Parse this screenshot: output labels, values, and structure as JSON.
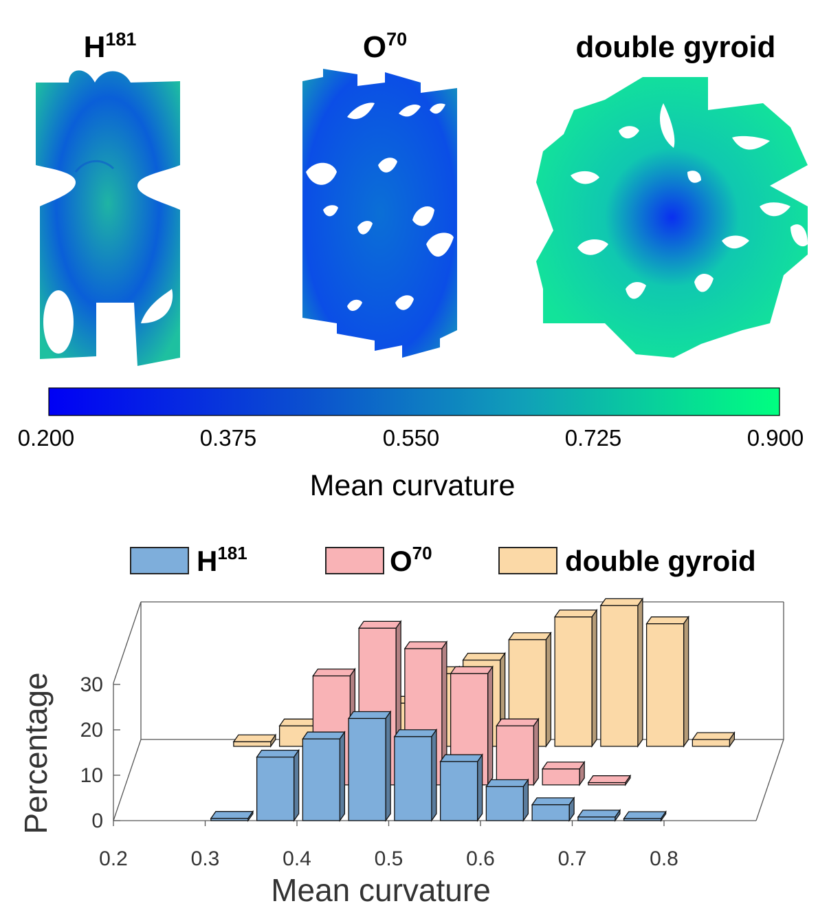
{
  "panels": [
    {
      "title_base": "H",
      "title_sup": "181",
      "icon": "h181-surface-icon"
    },
    {
      "title_base": "O",
      "title_sup": "70",
      "icon": "o70-surface-icon"
    },
    {
      "title_base": "double gyroid",
      "title_sup": "",
      "icon": "double-gyroid-surface-icon"
    }
  ],
  "colorbar": {
    "ticks": [
      "0.200",
      "0.375",
      "0.550",
      "0.725",
      "0.900"
    ],
    "label": "Mean curvature",
    "colors": [
      "#0000f5",
      "#0b4fcf",
      "#10a0b8",
      "#00ff80"
    ]
  },
  "legend": [
    {
      "base": "H",
      "sup": "181",
      "color": "#7eaedb"
    },
    {
      "base": "O",
      "sup": "70",
      "color": "#f9b3b6"
    },
    {
      "base": "double gyroid",
      "sup": "",
      "color": "#fbd9a7"
    }
  ],
  "chart_data": {
    "type": "bar",
    "x_ticks": [
      "0.2",
      "0.3",
      "0.4",
      "0.5",
      "0.6",
      "0.7",
      "0.8"
    ],
    "y_ticks": [
      "0",
      "10",
      "20",
      "30"
    ],
    "xlabel": "Mean curvature",
    "ylabel": "Percentage",
    "xlim": [
      0.2,
      0.9
    ],
    "ylim": [
      0,
      40
    ],
    "series": [
      {
        "name": "H181",
        "color": "#7eaedb",
        "x": [
          0.325,
          0.375,
          0.425,
          0.475,
          0.525,
          0.575,
          0.625,
          0.675,
          0.725,
          0.775
        ],
        "values": [
          0.5,
          14,
          18,
          22.5,
          18.5,
          13,
          7.5,
          3.5,
          0.8,
          0.3
        ]
      },
      {
        "name": "O70",
        "color": "#f9b3b6",
        "x": [
          0.425,
          0.475,
          0.525,
          0.575,
          0.625,
          0.675,
          0.725
        ],
        "values": [
          24,
          34.5,
          30,
          24.5,
          13,
          3.5,
          0.5
        ]
      },
      {
        "name": "double gyroid",
        "color": "#fbd9a7",
        "x": [
          0.325,
          0.375,
          0.425,
          0.475,
          0.525,
          0.575,
          0.625,
          0.675,
          0.725,
          0.775,
          0.825
        ],
        "values": [
          1,
          4.5,
          6,
          9.5,
          16,
          19,
          23.5,
          28.5,
          31,
          27,
          1.5
        ]
      }
    ]
  }
}
